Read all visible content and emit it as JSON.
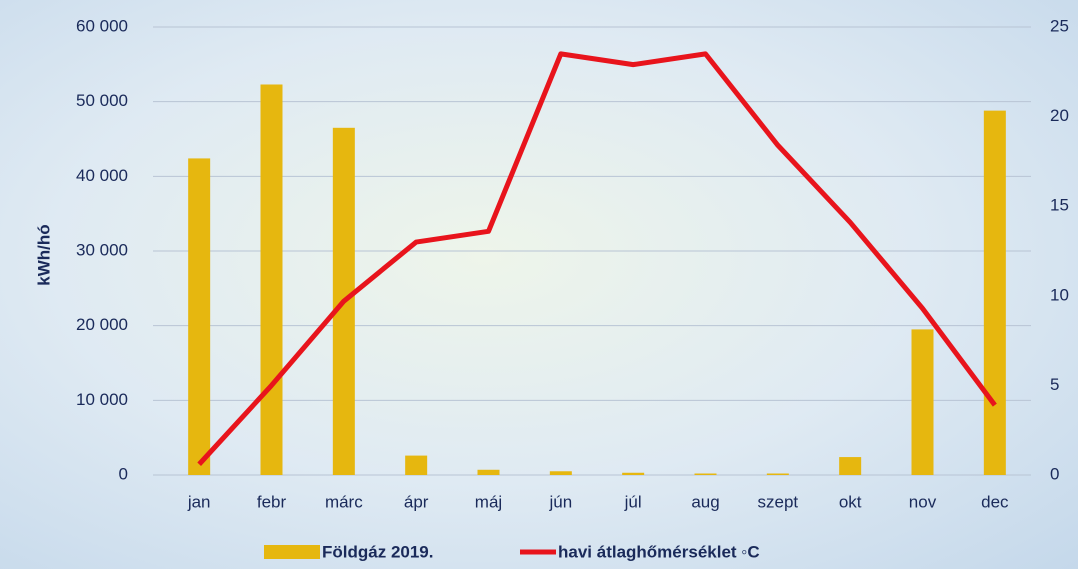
{
  "chart_data": {
    "type": "bar-line",
    "y_label": "kWh/hó",
    "categories": [
      "jan",
      "febr",
      "márc",
      "ápr",
      "máj",
      "jún",
      "júl",
      "aug",
      "szept",
      "okt",
      "nov",
      "dec"
    ],
    "series": [
      {
        "name": "Földgáz 2019.",
        "type": "bar",
        "color": "#e6b70f",
        "values": [
          42400,
          52300,
          46500,
          2600,
          700,
          500,
          300,
          200,
          200,
          2400,
          19500,
          48800
        ]
      },
      {
        "name": "havi átlaghőmérséklet ◦C",
        "type": "line",
        "axis": "y2",
        "color": "#e8141c",
        "values": [
          0.6,
          5.0,
          9.7,
          13.0,
          13.6,
          23.5,
          22.9,
          23.5,
          18.4,
          14.1,
          9.3,
          3.9
        ]
      }
    ],
    "ylim": [
      0,
      60000
    ],
    "yticks": [
      {
        "value": 0,
        "label": "0"
      },
      {
        "value": 10000,
        "label": "10 000"
      },
      {
        "value": 20000,
        "label": "20 000"
      },
      {
        "value": 30000,
        "label": "30 000"
      },
      {
        "value": 40000,
        "label": "40 000"
      },
      {
        "value": 50000,
        "label": "50 000"
      },
      {
        "value": 60000,
        "label": "60 000"
      }
    ],
    "y2lim": [
      0,
      25
    ],
    "y2ticks": [
      0,
      5,
      10,
      15,
      20,
      25
    ],
    "grid": true
  }
}
